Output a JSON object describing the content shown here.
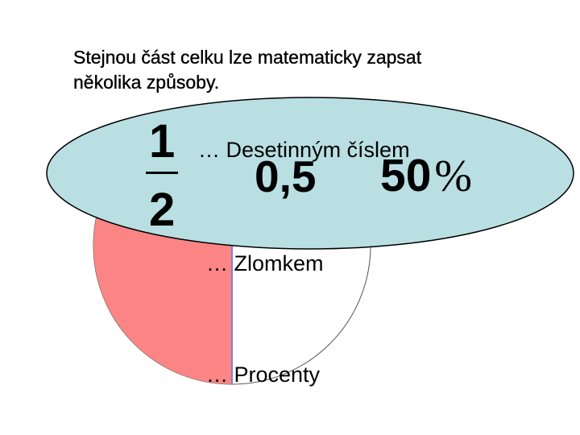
{
  "heading": {
    "line1": "Stejnou část celku lze matematicky zapsat",
    "line2": "několika způsoby."
  },
  "labels": {
    "decimal": "… Desetinným číslem",
    "fraction": "… Zlomkem",
    "percent": "… Procenty"
  },
  "expressions": {
    "fraction_numerator": "1",
    "fraction_denominator": "2",
    "decimal_value": "0,5",
    "percent_value": "50",
    "percent_sign": "%"
  },
  "colors": {
    "ellipse_fill": "#b9dfe3",
    "half_fill": "#fb8585",
    "divider": "#8080d0",
    "outline": "#000000"
  },
  "shaded_fraction": 0.5
}
